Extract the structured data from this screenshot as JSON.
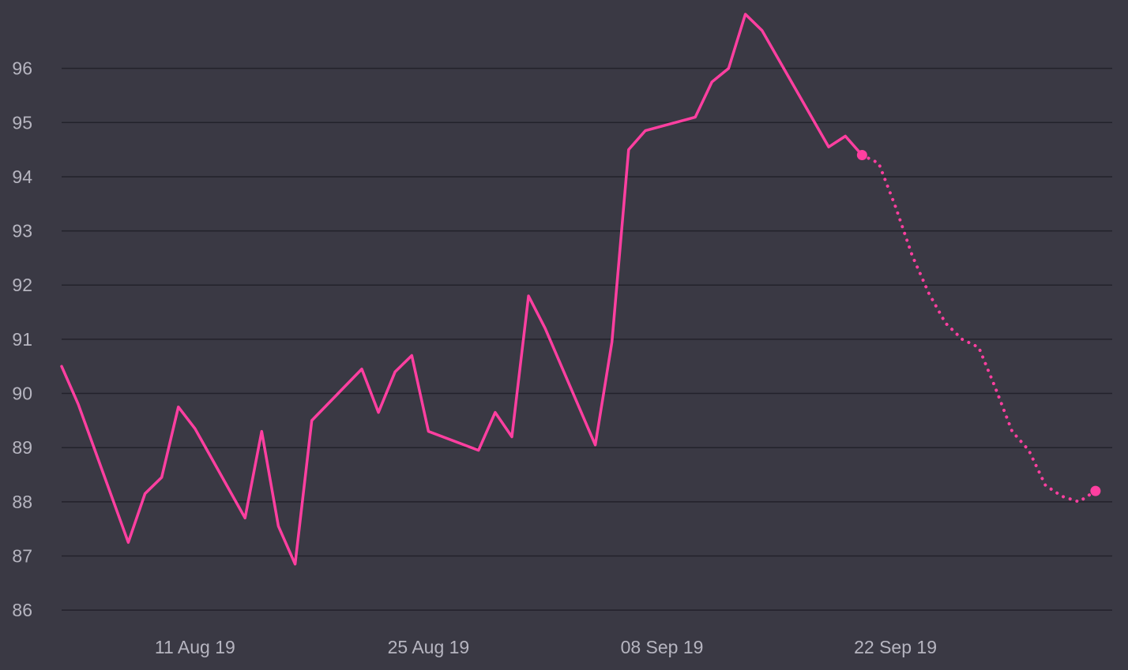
{
  "chart_data": {
    "type": "line",
    "title": "",
    "xlabel": "",
    "ylabel": "",
    "xlim": [
      "2019-08-03",
      "2019-10-05"
    ],
    "ylim": [
      85.9,
      97.0
    ],
    "grid": {
      "horizontal": true,
      "vertical": false
    },
    "legend": "none",
    "colors": {
      "background": "#3a3944",
      "grid": "#23222b",
      "series": "#ff3fa0",
      "tick_text": "#b6b5c0"
    },
    "y_ticks": [
      "86",
      "87",
      "88",
      "89",
      "90",
      "91",
      "92",
      "93",
      "94",
      "95",
      "96"
    ],
    "x_ticks": [
      {
        "date": "2019-08-11",
        "label": "11 Aug 19"
      },
      {
        "date": "2019-08-25",
        "label": "25 Aug 19"
      },
      {
        "date": "2019-09-08",
        "label": "08 Sep 19"
      },
      {
        "date": "2019-09-22",
        "label": "22 Sep 19"
      }
    ],
    "series": [
      {
        "style": "solid",
        "points": [
          {
            "x": "2019-08-03",
            "y": 90.5
          },
          {
            "x": "2019-08-04",
            "y": 89.8
          },
          {
            "x": "2019-08-07",
            "y": 87.25
          },
          {
            "x": "2019-08-08",
            "y": 88.15
          },
          {
            "x": "2019-08-09",
            "y": 88.45
          },
          {
            "x": "2019-08-10",
            "y": 89.75
          },
          {
            "x": "2019-08-11",
            "y": 89.35
          },
          {
            "x": "2019-08-14",
            "y": 87.7
          },
          {
            "x": "2019-08-15",
            "y": 89.3
          },
          {
            "x": "2019-08-16",
            "y": 87.55
          },
          {
            "x": "2019-08-17",
            "y": 86.85
          },
          {
            "x": "2019-08-18",
            "y": 89.5
          },
          {
            "x": "2019-08-21",
            "y": 90.45
          },
          {
            "x": "2019-08-22",
            "y": 89.65
          },
          {
            "x": "2019-08-23",
            "y": 90.4
          },
          {
            "x": "2019-08-24",
            "y": 90.7
          },
          {
            "x": "2019-08-25",
            "y": 89.3
          },
          {
            "x": "2019-08-28",
            "y": 88.95
          },
          {
            "x": "2019-08-29",
            "y": 89.65
          },
          {
            "x": "2019-08-30",
            "y": 89.2
          },
          {
            "x": "2019-08-31",
            "y": 91.8
          },
          {
            "x": "2019-09-01",
            "y": 91.2
          },
          {
            "x": "2019-09-04",
            "y": 89.05
          },
          {
            "x": "2019-09-05",
            "y": 90.95
          },
          {
            "x": "2019-09-06",
            "y": 94.5
          },
          {
            "x": "2019-09-07",
            "y": 94.85
          },
          {
            "x": "2019-09-10",
            "y": 95.1
          },
          {
            "x": "2019-09-11",
            "y": 95.75
          },
          {
            "x": "2019-09-12",
            "y": 96.0
          },
          {
            "x": "2019-09-13",
            "y": 97.0
          },
          {
            "x": "2019-09-14",
            "y": 96.7
          },
          {
            "x": "2019-09-18",
            "y": 94.55
          },
          {
            "x": "2019-09-19",
            "y": 94.75
          },
          {
            "x": "2019-09-20",
            "y": 94.4
          }
        ]
      },
      {
        "style": "dotted",
        "points": [
          {
            "x": "2019-09-20",
            "y": 94.4
          },
          {
            "x": "2019-09-21",
            "y": 94.25
          },
          {
            "x": "2019-09-22",
            "y": 93.45
          },
          {
            "x": "2019-09-23",
            "y": 92.55
          },
          {
            "x": "2019-09-24",
            "y": 91.85
          },
          {
            "x": "2019-09-25",
            "y": 91.3
          },
          {
            "x": "2019-09-26",
            "y": 91.0
          },
          {
            "x": "2019-09-27",
            "y": 90.85
          },
          {
            "x": "2019-09-28",
            "y": 90.1
          },
          {
            "x": "2019-09-29",
            "y": 89.3
          },
          {
            "x": "2019-09-30",
            "y": 88.95
          },
          {
            "x": "2019-10-01",
            "y": 88.3
          },
          {
            "x": "2019-10-02",
            "y": 88.1
          },
          {
            "x": "2019-10-03",
            "y": 88.0
          },
          {
            "x": "2019-10-04",
            "y": 88.2
          }
        ]
      }
    ],
    "markers": [
      {
        "x": "2019-09-20",
        "y": 94.4
      },
      {
        "x": "2019-10-04",
        "y": 88.2
      }
    ]
  }
}
